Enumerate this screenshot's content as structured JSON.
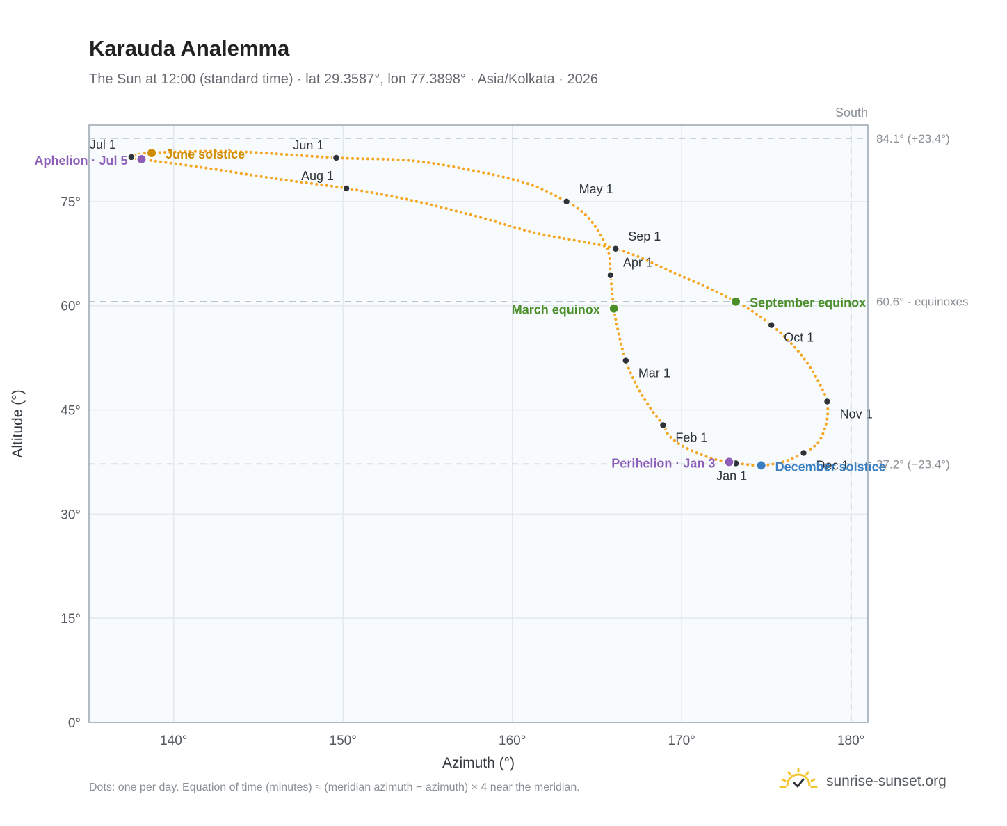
{
  "header": {
    "title": "Karauda Analemma",
    "subtitle": "The Sun at 12:00 (standard time) · lat 29.3587°, lon 77.3898° · Asia/Kolkata · 2026"
  },
  "footer": {
    "note": "Dots: one per day. Equation of time (minutes) ≈ (meridian azimuth − azimuth) × 4 near the meridian.",
    "brand": "sunrise-sunset.org"
  },
  "colors": {
    "curve": "#f5a623",
    "month_marker": "#2d3338",
    "solstice_june": "#d08c00",
    "solstice_december": "#3a7fc1",
    "equinox": "#4a8f2a",
    "aphelion_perihelion": "#8e5fb8",
    "reference_line": "#b9c3cc",
    "plot_background": "#f8fbfd"
  },
  "chart_data": {
    "type": "scatter",
    "xlabel": "Azimuth (°)",
    "ylabel": "Altitude (°)",
    "xlim": [
      135,
      181
    ],
    "ylim": [
      0,
      86
    ],
    "xticks": [
      140,
      150,
      160,
      170,
      180
    ],
    "yticks": [
      0,
      15,
      30,
      45,
      60,
      75
    ],
    "xtick_labels": [
      "140°",
      "150°",
      "160°",
      "170°",
      "180°"
    ],
    "ytick_labels": [
      "0°",
      "15°",
      "30°",
      "45°",
      "60°",
      "75°"
    ],
    "grid": true,
    "meridian": {
      "azimuth": 180,
      "label": "South"
    },
    "reference_lines": [
      {
        "altitude": 84.1,
        "label": "84.1° (+23.4°)"
      },
      {
        "altitude": 60.6,
        "label": "60.6° · equinoxes"
      },
      {
        "altitude": 37.2,
        "label": "37.2° (−23.4°)"
      }
    ],
    "path": [
      {
        "date": "Jan 1",
        "azimuth": 173.2,
        "altitude": 37.3
      },
      {
        "date": "Jan 8",
        "azimuth": 171.8,
        "altitude": 38.0
      },
      {
        "date": "Jan 16",
        "azimuth": 170.2,
        "altitude": 39.6
      },
      {
        "date": "Jan 24",
        "azimuth": 169.3,
        "altitude": 41.2
      },
      {
        "date": "Feb 1",
        "azimuth": 168.9,
        "altitude": 42.8
      },
      {
        "date": "Feb 10",
        "azimuth": 168.0,
        "altitude": 45.8
      },
      {
        "date": "Feb 18",
        "azimuth": 167.3,
        "altitude": 48.7
      },
      {
        "date": "Mar 1",
        "azimuth": 166.7,
        "altitude": 52.1
      },
      {
        "date": "Mar 10",
        "azimuth": 166.3,
        "altitude": 55.8
      },
      {
        "date": "Mar 20",
        "azimuth": 166.0,
        "altitude": 59.6
      },
      {
        "date": "Apr 1",
        "azimuth": 165.8,
        "altitude": 64.4
      },
      {
        "date": "Apr 9",
        "azimuth": 165.7,
        "altitude": 67.5
      },
      {
        "date": "Apr 16",
        "azimuth": 165.2,
        "altitude": 70.2
      },
      {
        "date": "Apr 23",
        "azimuth": 164.4,
        "altitude": 72.9
      },
      {
        "date": "May 1",
        "azimuth": 163.2,
        "altitude": 75.0
      },
      {
        "date": "May 9",
        "azimuth": 161.0,
        "altitude": 77.5
      },
      {
        "date": "May 17",
        "azimuth": 157.8,
        "altitude": 79.4
      },
      {
        "date": "May 24",
        "azimuth": 154.0,
        "altitude": 80.9
      },
      {
        "date": "Jun 1",
        "azimuth": 149.6,
        "altitude": 81.3
      },
      {
        "date": "Jun 11",
        "azimuth": 143.5,
        "altitude": 82.2
      },
      {
        "date": "Jun 21",
        "azimuth": 138.7,
        "altitude": 82.0
      },
      {
        "date": "Jul 1",
        "azimuth": 137.5,
        "altitude": 81.4
      },
      {
        "date": "Jul 5",
        "azimuth": 138.1,
        "altitude": 81.1
      },
      {
        "date": "Jul 14",
        "azimuth": 142.0,
        "altitude": 79.8
      },
      {
        "date": "Jul 22",
        "azimuth": 146.0,
        "altitude": 78.3
      },
      {
        "date": "Aug 1",
        "azimuth": 150.2,
        "altitude": 76.9
      },
      {
        "date": "Aug 10",
        "azimuth": 154.0,
        "altitude": 75.2
      },
      {
        "date": "Aug 19",
        "azimuth": 158.0,
        "altitude": 72.8
      },
      {
        "date": "Aug 26",
        "azimuth": 161.5,
        "altitude": 70.4
      },
      {
        "date": "Sep 1",
        "azimuth": 166.1,
        "altitude": 68.2
      },
      {
        "date": "Sep 12",
        "azimuth": 169.5,
        "altitude": 64.8
      },
      {
        "date": "Sep 23",
        "azimuth": 173.2,
        "altitude": 60.6
      },
      {
        "date": "Oct 1",
        "azimuth": 175.3,
        "altitude": 57.2
      },
      {
        "date": "Oct 10",
        "azimuth": 176.8,
        "altitude": 53.7
      },
      {
        "date": "Oct 18",
        "azimuth": 177.8,
        "altitude": 50.3
      },
      {
        "date": "Oct 26",
        "azimuth": 178.4,
        "altitude": 47.5
      },
      {
        "date": "Nov 1",
        "azimuth": 178.6,
        "altitude": 46.2
      },
      {
        "date": "Nov 9",
        "azimuth": 178.6,
        "altitude": 43.8
      },
      {
        "date": "Nov 17",
        "azimuth": 178.3,
        "altitude": 41.3
      },
      {
        "date": "Nov 24",
        "azimuth": 177.9,
        "altitude": 39.9
      },
      {
        "date": "Dec 1",
        "azimuth": 177.2,
        "altitude": 38.8
      },
      {
        "date": "Dec 11",
        "azimuth": 176.1,
        "altitude": 37.6
      },
      {
        "date": "Dec 21",
        "azimuth": 174.7,
        "altitude": 37.0
      },
      {
        "date": "Dec 31",
        "azimuth": 173.3,
        "altitude": 37.3
      }
    ],
    "month_markers": [
      {
        "label": "Jan 1",
        "azimuth": 173.2,
        "altitude": 37.3
      },
      {
        "label": "Feb 1",
        "azimuth": 168.9,
        "altitude": 42.8
      },
      {
        "label": "Mar 1",
        "azimuth": 166.7,
        "altitude": 52.1
      },
      {
        "label": "Apr 1",
        "azimuth": 165.8,
        "altitude": 64.4
      },
      {
        "label": "May 1",
        "azimuth": 163.2,
        "altitude": 75.0
      },
      {
        "label": "Jun 1",
        "azimuth": 149.6,
        "altitude": 81.3
      },
      {
        "label": "Jul 1",
        "azimuth": 137.5,
        "altitude": 81.4
      },
      {
        "label": "Aug 1",
        "azimuth": 150.2,
        "altitude": 76.9
      },
      {
        "label": "Sep 1",
        "azimuth": 166.1,
        "altitude": 68.2
      },
      {
        "label": "Oct 1",
        "azimuth": 175.3,
        "altitude": 57.2
      },
      {
        "label": "Nov 1",
        "azimuth": 178.6,
        "altitude": 46.2
      },
      {
        "label": "Dec 1",
        "azimuth": 177.2,
        "altitude": 38.8
      }
    ],
    "events": [
      {
        "label": "June solstice",
        "kind": "solstice_june",
        "azimuth": 138.7,
        "altitude": 82.0
      },
      {
        "label": "December solstice",
        "kind": "solstice_december",
        "azimuth": 174.7,
        "altitude": 37.0
      },
      {
        "label": "March equinox",
        "kind": "equinox",
        "azimuth": 166.0,
        "altitude": 59.6
      },
      {
        "label": "September equinox",
        "kind": "equinox",
        "azimuth": 173.2,
        "altitude": 60.6
      },
      {
        "label": "Aphelion · Jul 5",
        "kind": "aphelion_perihelion",
        "azimuth": 138.1,
        "altitude": 81.1
      },
      {
        "label": "Perihelion · Jan 3",
        "kind": "aphelion_perihelion",
        "azimuth": 172.8,
        "altitude": 37.5
      }
    ]
  }
}
